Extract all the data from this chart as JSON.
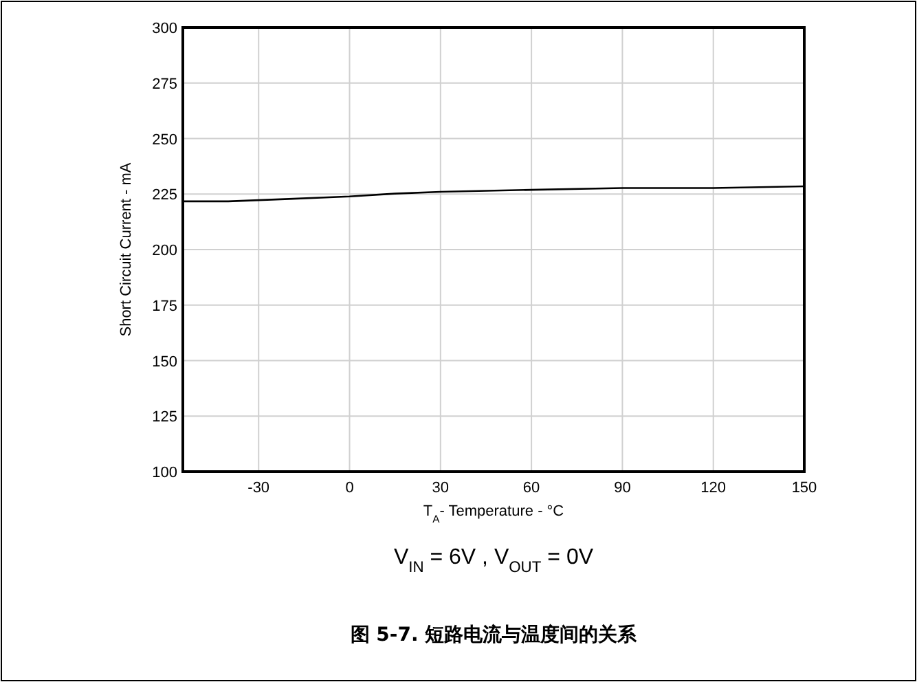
{
  "chart_data": {
    "type": "line",
    "title": "图 5-7. 短路电流与温度间的关系",
    "xlabel": "T$_{A}$- Temperature - °C",
    "ylabel": "Short Circuit Current - mA",
    "annotations": [
      "V$_{IN}$ = 6V , V$_{OUT}$ = 0V"
    ],
    "series": [
      {
        "color": "#000000",
        "x": [
          -55,
          -40,
          -20,
          0,
          15,
          30,
          60,
          90,
          120,
          150
        ],
        "values": [
          221.7,
          221.7,
          222.8,
          223.9,
          225.2,
          226,
          226.9,
          227.7,
          227.7,
          228.5
        ]
      }
    ],
    "xlim": [
      -55,
      150
    ],
    "xticks": [
      -30,
      0,
      30,
      60,
      90,
      120,
      150
    ],
    "ylim": [
      100,
      300
    ],
    "yticks": [
      100,
      125,
      150,
      175,
      200,
      225,
      250,
      275,
      300
    ],
    "grid": true,
    "marker": "none",
    "line_style": "solid"
  }
}
